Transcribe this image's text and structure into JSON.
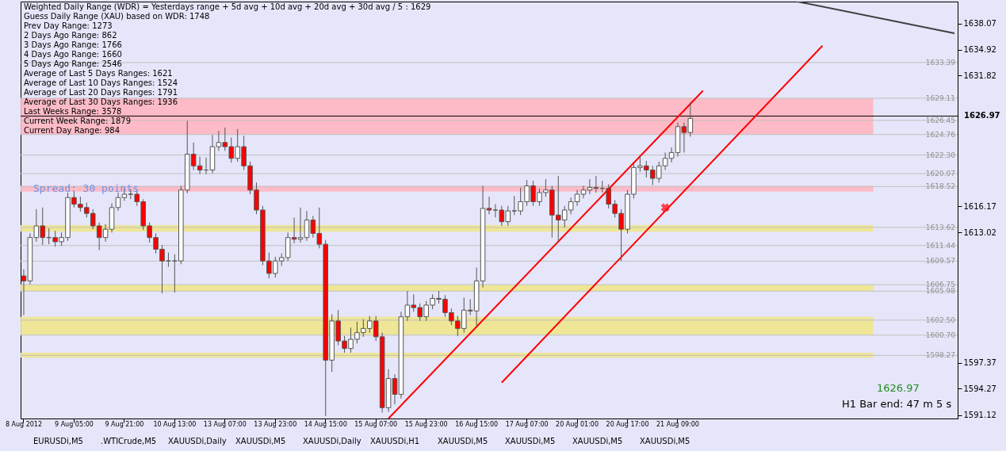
{
  "chart_data": {
    "type": "candlestick",
    "title": "Weighted Daily Range (WDR) = Yesterdays range + 5d avg + 10d avg + 20d avg + 30d avg / 5 : 1629",
    "categories": [
      "8 Aug 2012",
      null,
      null,
      null,
      null,
      null,
      null,
      null,
      "9 Aug 05:00",
      null,
      null,
      null,
      null,
      null,
      null,
      null,
      "9 Aug 21:00",
      null,
      null,
      null,
      null,
      null,
      null,
      null,
      "10 Aug 13:00",
      null,
      null,
      null,
      null,
      null,
      null,
      null,
      "13 Aug 07:00",
      null,
      null,
      null,
      null,
      null,
      null,
      null,
      "13 Aug 23:00",
      null,
      null,
      null,
      null,
      null,
      null,
      null,
      "14 Aug 15:00",
      null,
      null,
      null,
      null,
      null,
      null,
      null,
      "15 Aug 07:00",
      null,
      null,
      null,
      null,
      null,
      null,
      null,
      "15 Aug 23:00",
      null,
      null,
      null,
      null,
      null,
      null,
      null,
      "16 Aug 15:00",
      null,
      null,
      null,
      null,
      null,
      null,
      null,
      "17 Aug 07:00",
      null,
      null,
      null,
      null,
      null,
      null,
      null,
      "20 Aug 01:00",
      null,
      null,
      null,
      null,
      null,
      null,
      null,
      "20 Aug 17:00",
      null,
      null,
      null,
      null,
      null,
      null,
      null,
      "21 Aug 09:00",
      null,
      null,
      null,
      null,
      null,
      null,
      null,
      null,
      null,
      null,
      null,
      null,
      null,
      null,
      null,
      null,
      null,
      null,
      null,
      null,
      null,
      null,
      null,
      null,
      null,
      null,
      null,
      null,
      null,
      null,
      null,
      null,
      null,
      null,
      null,
      null,
      null,
      null,
      null,
      null,
      null,
      null,
      null,
      null
    ],
    "ohlc": [
      [
        1607.8,
        1608.6,
        1603.1,
        1607.2
      ],
      [
        1607.2,
        1612.9,
        1606.8,
        1612.4
      ],
      [
        1612.4,
        1615.8,
        1611.9,
        1613.8
      ],
      [
        1613.8,
        1616.0,
        1611.5,
        1612.4
      ],
      [
        1612.4,
        1613.5,
        1611.6,
        1612.4
      ],
      [
        1612.4,
        1613.2,
        1611.3,
        1611.9
      ],
      [
        1611.9,
        1613.0,
        1611.4,
        1612.4
      ],
      [
        1612.4,
        1617.8,
        1612.0,
        1617.2
      ],
      [
        1617.2,
        1617.9,
        1616.0,
        1616.4
      ],
      [
        1616.4,
        1617.3,
        1615.5,
        1616.0
      ],
      [
        1616.0,
        1616.6,
        1614.8,
        1615.3
      ],
      [
        1615.3,
        1615.8,
        1613.4,
        1613.8
      ],
      [
        1613.8,
        1614.2,
        1610.9,
        1612.4
      ],
      [
        1612.4,
        1614.0,
        1611.9,
        1613.4
      ],
      [
        1613.4,
        1616.5,
        1613.0,
        1616.0
      ],
      [
        1616.0,
        1617.8,
        1615.6,
        1617.2
      ],
      [
        1617.2,
        1618.3,
        1616.8,
        1617.6
      ],
      [
        1617.6,
        1618.2,
        1617.0,
        1617.6
      ],
      [
        1617.6,
        1618.0,
        1616.2,
        1616.7
      ],
      [
        1616.7,
        1617.0,
        1613.3,
        1613.8
      ],
      [
        1613.8,
        1614.2,
        1611.8,
        1612.4
      ],
      [
        1612.4,
        1612.9,
        1610.5,
        1611.0
      ],
      [
        1611.0,
        1611.5,
        1605.7,
        1609.6
      ],
      [
        1609.6,
        1610.6,
        1608.9,
        1609.6
      ],
      [
        1609.6,
        1610.4,
        1605.8,
        1609.6
      ],
      [
        1609.6,
        1618.6,
        1609.2,
        1618.1
      ],
      [
        1618.1,
        1626.4,
        1617.7,
        1622.4
      ],
      [
        1622.4,
        1623.8,
        1620.5,
        1621.0
      ],
      [
        1621.0,
        1622.1,
        1620.0,
        1620.5
      ],
      [
        1620.5,
        1622.0,
        1620.0,
        1620.5
      ],
      [
        1620.5,
        1624.7,
        1620.1,
        1623.3
      ],
      [
        1623.3,
        1625.2,
        1622.8,
        1623.8
      ],
      [
        1623.8,
        1625.6,
        1622.8,
        1623.3
      ],
      [
        1623.3,
        1624.4,
        1621.4,
        1621.9
      ],
      [
        1621.9,
        1625.4,
        1621.5,
        1623.3
      ],
      [
        1623.3,
        1624.6,
        1620.5,
        1621.0
      ],
      [
        1621.0,
        1621.5,
        1617.6,
        1618.1
      ],
      [
        1618.1,
        1619.0,
        1615.2,
        1615.7
      ],
      [
        1615.7,
        1616.2,
        1609.1,
        1609.6
      ],
      [
        1609.6,
        1610.6,
        1607.5,
        1608.1
      ],
      [
        1608.1,
        1610.1,
        1607.6,
        1609.6
      ],
      [
        1609.6,
        1610.5,
        1609.0,
        1610.0
      ],
      [
        1610.0,
        1613.0,
        1609.6,
        1612.4
      ],
      [
        1612.4,
        1614.8,
        1611.7,
        1612.2
      ],
      [
        1612.2,
        1616.0,
        1611.8,
        1612.4
      ],
      [
        1612.4,
        1615.6,
        1612.0,
        1614.5
      ],
      [
        1614.5,
        1615.0,
        1612.4,
        1612.9
      ],
      [
        1612.9,
        1616.0,
        1611.1,
        1611.6
      ],
      [
        1611.6,
        1612.1,
        1591.0,
        1597.7
      ],
      [
        1597.7,
        1603.2,
        1596.3,
        1602.4
      ],
      [
        1602.4,
        1603.7,
        1599.5,
        1600.0
      ],
      [
        1600.0,
        1600.6,
        1598.6,
        1599.1
      ],
      [
        1599.1,
        1601.6,
        1598.6,
        1600.2
      ],
      [
        1600.2,
        1602.3,
        1599.7,
        1601.0
      ],
      [
        1601.0,
        1602.6,
        1600.5,
        1601.5
      ],
      [
        1601.5,
        1603.0,
        1601.0,
        1602.4
      ],
      [
        1602.4,
        1603.0,
        1600.0,
        1600.5
      ],
      [
        1600.5,
        1601.0,
        1591.4,
        1592.0
      ],
      [
        1592.0,
        1596.6,
        1591.5,
        1595.5
      ],
      [
        1595.5,
        1596.0,
        1592.4,
        1593.6
      ],
      [
        1593.6,
        1603.5,
        1593.1,
        1602.9
      ],
      [
        1602.9,
        1606.0,
        1602.4,
        1604.3
      ],
      [
        1604.3,
        1605.6,
        1603.5,
        1604.0
      ],
      [
        1604.0,
        1604.5,
        1602.4,
        1602.9
      ],
      [
        1602.9,
        1604.8,
        1602.4,
        1604.3
      ],
      [
        1604.3,
        1605.6,
        1603.8,
        1605.1
      ],
      [
        1605.1,
        1606.0,
        1604.5,
        1605.0
      ],
      [
        1605.0,
        1605.5,
        1602.9,
        1603.4
      ],
      [
        1603.4,
        1603.9,
        1601.9,
        1602.4
      ],
      [
        1602.4,
        1603.0,
        1600.6,
        1601.5
      ],
      [
        1601.5,
        1605.2,
        1601.0,
        1603.7
      ],
      [
        1603.7,
        1605.0,
        1603.1,
        1603.6
      ],
      [
        1603.6,
        1608.8,
        1601.8,
        1607.2
      ],
      [
        1607.2,
        1618.6,
        1606.4,
        1615.9
      ],
      [
        1615.9,
        1617.3,
        1615.2,
        1615.7
      ],
      [
        1615.7,
        1616.4,
        1614.8,
        1615.7
      ],
      [
        1615.7,
        1616.2,
        1613.8,
        1614.3
      ],
      [
        1614.3,
        1616.2,
        1613.8,
        1615.6
      ],
      [
        1615.6,
        1617.4,
        1615.1,
        1615.6
      ],
      [
        1615.6,
        1618.4,
        1615.1,
        1616.7
      ],
      [
        1616.7,
        1619.3,
        1616.2,
        1618.6
      ],
      [
        1618.6,
        1619.2,
        1616.2,
        1616.7
      ],
      [
        1616.7,
        1618.3,
        1616.2,
        1617.8
      ],
      [
        1617.8,
        1619.4,
        1617.3,
        1618.1
      ],
      [
        1618.1,
        1618.6,
        1612.4,
        1615.1
      ],
      [
        1615.1,
        1619.8,
        1612.0,
        1614.5
      ],
      [
        1614.5,
        1616.2,
        1613.6,
        1615.7
      ],
      [
        1615.7,
        1617.2,
        1615.2,
        1616.7
      ],
      [
        1616.7,
        1618.1,
        1616.2,
        1617.6
      ],
      [
        1617.6,
        1618.6,
        1617.1,
        1618.1
      ],
      [
        1618.1,
        1619.4,
        1617.6,
        1618.4
      ],
      [
        1618.4,
        1619.8,
        1617.8,
        1618.3
      ],
      [
        1618.3,
        1619.2,
        1617.8,
        1618.3
      ],
      [
        1618.3,
        1618.8,
        1615.9,
        1616.4
      ],
      [
        1616.4,
        1616.9,
        1614.8,
        1615.3
      ],
      [
        1615.3,
        1615.8,
        1609.6,
        1613.4
      ],
      [
        1613.4,
        1618.1,
        1612.9,
        1617.6
      ],
      [
        1617.6,
        1621.3,
        1617.1,
        1620.8
      ],
      [
        1620.8,
        1622.2,
        1620.3,
        1621.0
      ],
      [
        1621.0,
        1621.6,
        1619.6,
        1620.5
      ],
      [
        1620.5,
        1621.0,
        1618.7,
        1619.5
      ],
      [
        1619.5,
        1621.5,
        1619.0,
        1621.0
      ],
      [
        1621.0,
        1622.6,
        1620.5,
        1621.9
      ],
      [
        1621.9,
        1623.2,
        1621.4,
        1622.6
      ],
      [
        1622.6,
        1626.2,
        1622.1,
        1625.7
      ],
      [
        1625.7,
        1626.2,
        1622.6,
        1625.0
      ],
      [
        1625.0,
        1628.6,
        1624.5,
        1626.7
      ],
      null,
      null,
      null,
      null,
      null,
      null,
      null,
      null,
      null,
      null,
      null,
      null,
      null,
      null,
      null,
      null,
      null,
      null,
      null,
      null,
      null,
      null,
      null,
      null,
      null,
      null,
      null,
      null,
      null,
      null,
      null,
      null,
      null,
      null,
      null,
      null,
      null,
      null,
      null,
      null,
      null,
      null
    ],
    "colors": [
      "#ff0000",
      "#ffffff",
      "#ffffff",
      "#ff0000",
      "#555555",
      "#ff0000",
      "#ffffff",
      "#ffffff",
      "#ff0000",
      "#ff0000",
      "#ff0000",
      "#ff0000",
      "#ff0000",
      "#ffffff",
      "#ffffff",
      "#ffffff",
      "#ffffff",
      "#555555",
      "#ff0000",
      "#ff0000",
      "#ff0000",
      "#ff0000",
      "#ff0000",
      "#555555",
      "#555555",
      "#ffffff",
      "#ffffff",
      "#ff0000",
      "#ff0000",
      "#555555",
      "#ffffff",
      "#ffffff",
      "#ff0000",
      "#ff0000",
      "#ffffff",
      "#ff0000",
      "#ff0000",
      "#ff0000",
      "#ff0000",
      "#ff0000",
      "#ffffff",
      "#ffffff",
      "#ffffff",
      "#ff0000",
      "#ffffff",
      "#ffffff",
      "#ff0000",
      "#ff0000",
      "#ff0000",
      "#ffffff",
      "#ff0000",
      "#ff0000",
      "#ffffff",
      "#ffffff",
      "#ffffff",
      "#ffffff",
      "#ff0000",
      "#ff0000",
      "#ffffff",
      "#ff0000",
      "#ffffff",
      "#ffffff",
      "#ff0000",
      "#ff0000",
      "#ffffff",
      "#ffffff",
      "#ff0000",
      "#ff0000",
      "#ff0000",
      "#ff0000",
      "#ffffff",
      "#ff0000",
      "#ffffff",
      "#ffffff",
      "#ff0000",
      "#555555",
      "#ff0000",
      "#ffffff",
      "#555555",
      "#ffffff",
      "#ffffff",
      "#ff0000",
      "#ffffff",
      "#ffffff",
      "#ff0000",
      "#ff0000",
      "#ffffff",
      "#ffffff",
      "#ffffff",
      "#ffffff",
      "#ffffff",
      "#ff0000",
      "#555555",
      "#ff0000",
      "#ff0000",
      "#ff0000",
      "#ffffff",
      "#ffffff",
      "#ffffff",
      "#ff0000",
      "#ff0000",
      "#ffffff",
      "#ffffff",
      "#ffffff",
      "#ffffff",
      "#ff0000",
      "#ffffff",
      null,
      null,
      null,
      null,
      null,
      null,
      null,
      null,
      null,
      null,
      null,
      null,
      null,
      null,
      null,
      null,
      null,
      null,
      null,
      null,
      null,
      null,
      null,
      null,
      null,
      null,
      null,
      null,
      null,
      null,
      null,
      null,
      null,
      null,
      null,
      null,
      null,
      null,
      null,
      null,
      null,
      null
    ],
    "series": [
      {
        "type": "line",
        "color": "#ff0000",
        "values": [
          null,
          null,
          null,
          null,
          null,
          null,
          null,
          null,
          null,
          null,
          null,
          null,
          null,
          null,
          null,
          null,
          null,
          null,
          null,
          null,
          null,
          null,
          null,
          null,
          null,
          null,
          null,
          null,
          null,
          null,
          null,
          null,
          null,
          null,
          null,
          null,
          null,
          null,
          null,
          null,
          null,
          null,
          null,
          null,
          null,
          null,
          null,
          null,
          null,
          null,
          null,
          null,
          null,
          null,
          null,
          null,
          null,
          null,
          1590.7,
          null,
          null,
          null,
          null,
          null,
          null,
          null,
          null,
          null,
          null,
          null,
          null,
          null,
          null,
          null,
          null,
          null,
          null,
          null,
          null,
          null,
          null,
          null,
          null,
          null,
          null,
          null,
          null,
          null,
          null,
          null,
          null,
          null,
          null,
          null,
          null,
          null,
          null,
          null,
          null,
          null,
          null,
          null,
          null,
          null,
          null,
          null,
          null,
          null,
          1630.0,
          null,
          null,
          null,
          null,
          null,
          null,
          null,
          null,
          null,
          null,
          null,
          null,
          null,
          null,
          null,
          null,
          null,
          null,
          null,
          null,
          null,
          null,
          null,
          null,
          null,
          null,
          null,
          null,
          null,
          null,
          null,
          null,
          null,
          null,
          null,
          null,
          null,
          null,
          null,
          null
        ]
      },
      {
        "type": "line",
        "color": "#ff0000",
        "values": [
          null,
          null,
          null,
          null,
          null,
          null,
          null,
          null,
          null,
          null,
          null,
          null,
          null,
          null,
          null,
          null,
          null,
          null,
          null,
          null,
          null,
          null,
          null,
          null,
          null,
          null,
          null,
          null,
          null,
          null,
          null,
          null,
          null,
          null,
          null,
          null,
          null,
          null,
          null,
          null,
          null,
          null,
          null,
          null,
          null,
          null,
          null,
          null,
          null,
          null,
          null,
          null,
          null,
          null,
          null,
          null,
          null,
          null,
          null,
          null,
          null,
          null,
          null,
          null,
          null,
          null,
          null,
          null,
          null,
          null,
          null,
          null,
          null,
          null,
          null,
          null,
          1595.0,
          null,
          null,
          null,
          null,
          null,
          null,
          null,
          null,
          null,
          null,
          null,
          null,
          null,
          null,
          null,
          null,
          null,
          null,
          null,
          null,
          null,
          null,
          null,
          null,
          null,
          null,
          null,
          null,
          null,
          null,
          null,
          null,
          null,
          null,
          null,
          null,
          null,
          null,
          null,
          null,
          null,
          null,
          null,
          null,
          null,
          null,
          null,
          null,
          null,
          null,
          1635.4,
          null,
          null,
          null,
          null,
          null,
          null,
          null,
          null,
          null,
          null,
          null,
          null,
          null,
          null,
          null,
          null,
          null,
          null,
          null,
          null,
          null
        ]
      },
      {
        "type": "line",
        "color": "#404040",
        "values": [
          null,
          null,
          null,
          null,
          null,
          null,
          null,
          null,
          null,
          null,
          null,
          null,
          null,
          null,
          null,
          null,
          null,
          null,
          null,
          null,
          null,
          null,
          null,
          null,
          null,
          null,
          null,
          null,
          null,
          null,
          null,
          null,
          null,
          null,
          null,
          null,
          null,
          null,
          null,
          null,
          null,
          null,
          null,
          null,
          null,
          null,
          null,
          null,
          null,
          null,
          null,
          null,
          null,
          null,
          null,
          null,
          null,
          null,
          null,
          null,
          null,
          null,
          null,
          null,
          null,
          null,
          null,
          null,
          null,
          null,
          null,
          null,
          null,
          null,
          null,
          null,
          null,
          null,
          null,
          null,
          null,
          null,
          null,
          null,
          null,
          null,
          null,
          null,
          null,
          null,
          null,
          null,
          null,
          null,
          null,
          null,
          null,
          null,
          null,
          null,
          null,
          null,
          null,
          null,
          null,
          null,
          null,
          null,
          null,
          null,
          null,
          null,
          null,
          null,
          null,
          null,
          null,
          null,
          null,
          null,
          null,
          null,
          null,
          1640.7,
          null,
          null,
          null,
          null,
          null,
          null,
          null,
          null,
          null,
          null,
          null,
          null,
          null,
          null,
          null,
          null,
          null,
          null,
          null,
          null,
          null,
          null,
          null,
          null,
          1636.9
        ]
      },
      {
        "type": "scatter",
        "color": "#ff0000",
        "marker": "cross",
        "values": [
          null,
          null,
          null,
          null,
          null,
          null,
          null,
          null,
          null,
          null,
          null,
          null,
          null,
          null,
          null,
          null,
          null,
          null,
          null,
          null,
          null,
          null,
          null,
          null,
          null,
          null,
          null,
          null,
          null,
          null,
          null,
          null,
          null,
          null,
          null,
          null,
          null,
          null,
          null,
          null,
          null,
          null,
          null,
          null,
          null,
          null,
          null,
          null,
          null,
          null,
          null,
          null,
          null,
          null,
          null,
          null,
          null,
          null,
          null,
          null,
          null,
          null,
          null,
          null,
          null,
          null,
          null,
          null,
          null,
          null,
          null,
          null,
          null,
          null,
          null,
          null,
          null,
          null,
          null,
          null,
          null,
          null,
          null,
          null,
          null,
          null,
          null,
          null,
          null,
          null,
          null,
          null,
          null,
          null,
          null,
          null,
          null,
          null,
          null,
          null,
          null,
          null,
          1616.0,
          null,
          null,
          null,
          null,
          null,
          null,
          null,
          null,
          null,
          null,
          null,
          null,
          null,
          null,
          null,
          null,
          null,
          null,
          null,
          null,
          null,
          null,
          null,
          null,
          null,
          null,
          null,
          null,
          null,
          null,
          null,
          null,
          null,
          null,
          null,
          null,
          null,
          null,
          null,
          null,
          null,
          null,
          null,
          null,
          null,
          null
        ]
      }
    ],
    "ylim": [
      1590.7,
      1640.7
    ],
    "yticks": [
      1638.07,
      1634.92,
      1631.82,
      1616.17,
      1613.02,
      1597.37,
      1594.27,
      1591.12
    ],
    "grid": false,
    "ref_lines": [
      {
        "axis": "y",
        "value": 1626.97,
        "label": "1626.97",
        "color": "#000000"
      },
      {
        "axis": "y",
        "value": 1633.39,
        "label": "1633.39",
        "color": "#c0c0c0"
      },
      {
        "axis": "y",
        "value": 1629.11,
        "label": "1629.11",
        "color": "#c0c0c0"
      },
      {
        "axis": "y",
        "value": 1626.45,
        "label": "1626.45",
        "color": "#c0c0c0"
      },
      {
        "axis": "y",
        "value": 1624.76,
        "label": "1624.76",
        "color": "#c0c0c0"
      },
      {
        "axis": "y",
        "value": 1622.3,
        "label": "1622.30",
        "color": "#c0c0c0"
      },
      {
        "axis": "y",
        "value": 1620.07,
        "label": "1620.07",
        "color": "#c0c0c0"
      },
      {
        "axis": "y",
        "value": 1618.52,
        "label": "1618.52",
        "color": "#c0c0c0"
      },
      {
        "axis": "y",
        "value": 1613.62,
        "label": "1613.62",
        "color": "#c0c0c0"
      },
      {
        "axis": "y",
        "value": 1611.44,
        "label": "1611.44",
        "color": "#c0c0c0"
      },
      {
        "axis": "y",
        "value": 1609.57,
        "label": "1609.57",
        "color": "#c0c0c0"
      },
      {
        "axis": "y",
        "value": 1606.75,
        "label": "1606.75",
        "color": "#c0c0c0"
      },
      {
        "axis": "y",
        "value": 1605.98,
        "label": "1605.98",
        "color": "#c0c0c0"
      },
      {
        "axis": "y",
        "value": 1602.5,
        "label": "1602.50",
        "color": "#c0c0c0"
      },
      {
        "axis": "y",
        "value": 1600.7,
        "label": "1600.70",
        "color": "#c0c0c0"
      },
      {
        "axis": "y",
        "value": 1598.27,
        "label": "1598.27",
        "color": "#c0c0c0"
      }
    ],
    "bands": [
      {
        "axis": "y",
        "from": 1624.76,
        "to": 1629.11,
        "color": "#ffb6c1"
      },
      {
        "axis": "y",
        "from": 1617.9,
        "to": 1618.6,
        "color": "#ffb6c1"
      },
      {
        "axis": "y",
        "from": 1613.1,
        "to": 1613.9,
        "color": "#f0e68c"
      },
      {
        "axis": "y",
        "from": 1605.98,
        "to": 1606.75,
        "color": "#f0e68c"
      },
      {
        "axis": "y",
        "from": 1600.7,
        "to": 1602.9,
        "color": "#f0e68c"
      },
      {
        "axis": "y",
        "from": 1598.0,
        "to": 1598.6,
        "color": "#f0e68c"
      }
    ],
    "annotations": [
      "Guess Daily Range (XAU) based on WDR: 1748",
      "Prev Day Range: 1273",
      "2 Days Ago Range: 862",
      "3 Days Ago Range: 1766",
      "4 Days Ago Range: 1660",
      "5 Days Ago Range: 2546",
      "Average of Last 5 Days Ranges: 1621",
      "Average of Last 10 Days Ranges: 1524",
      "Average of Last 20 Days Ranges: 1791",
      "Average of Last 30 Days Ranges: 1936",
      "Last Weeks Range: 3578",
      "Current Week Range: 1879",
      "Current Day Range: 984",
      {
        "text": "Spread: 30 points",
        "y": 1618.3
      },
      "1626.97",
      "H1 Bar end: 47 m 5 s",
      "EURUSDi,M5",
      ".WTICrude,M5",
      "XAUUSDi,Daily",
      "XAUUSDi,M5",
      "XAUUSDi,Daily",
      "XAUUSDi,H1",
      "XAUUSDi,M5",
      "XAUUSDi,M5",
      "XAUUSDi,M5",
      "XAUUSDi,M5"
    ]
  }
}
